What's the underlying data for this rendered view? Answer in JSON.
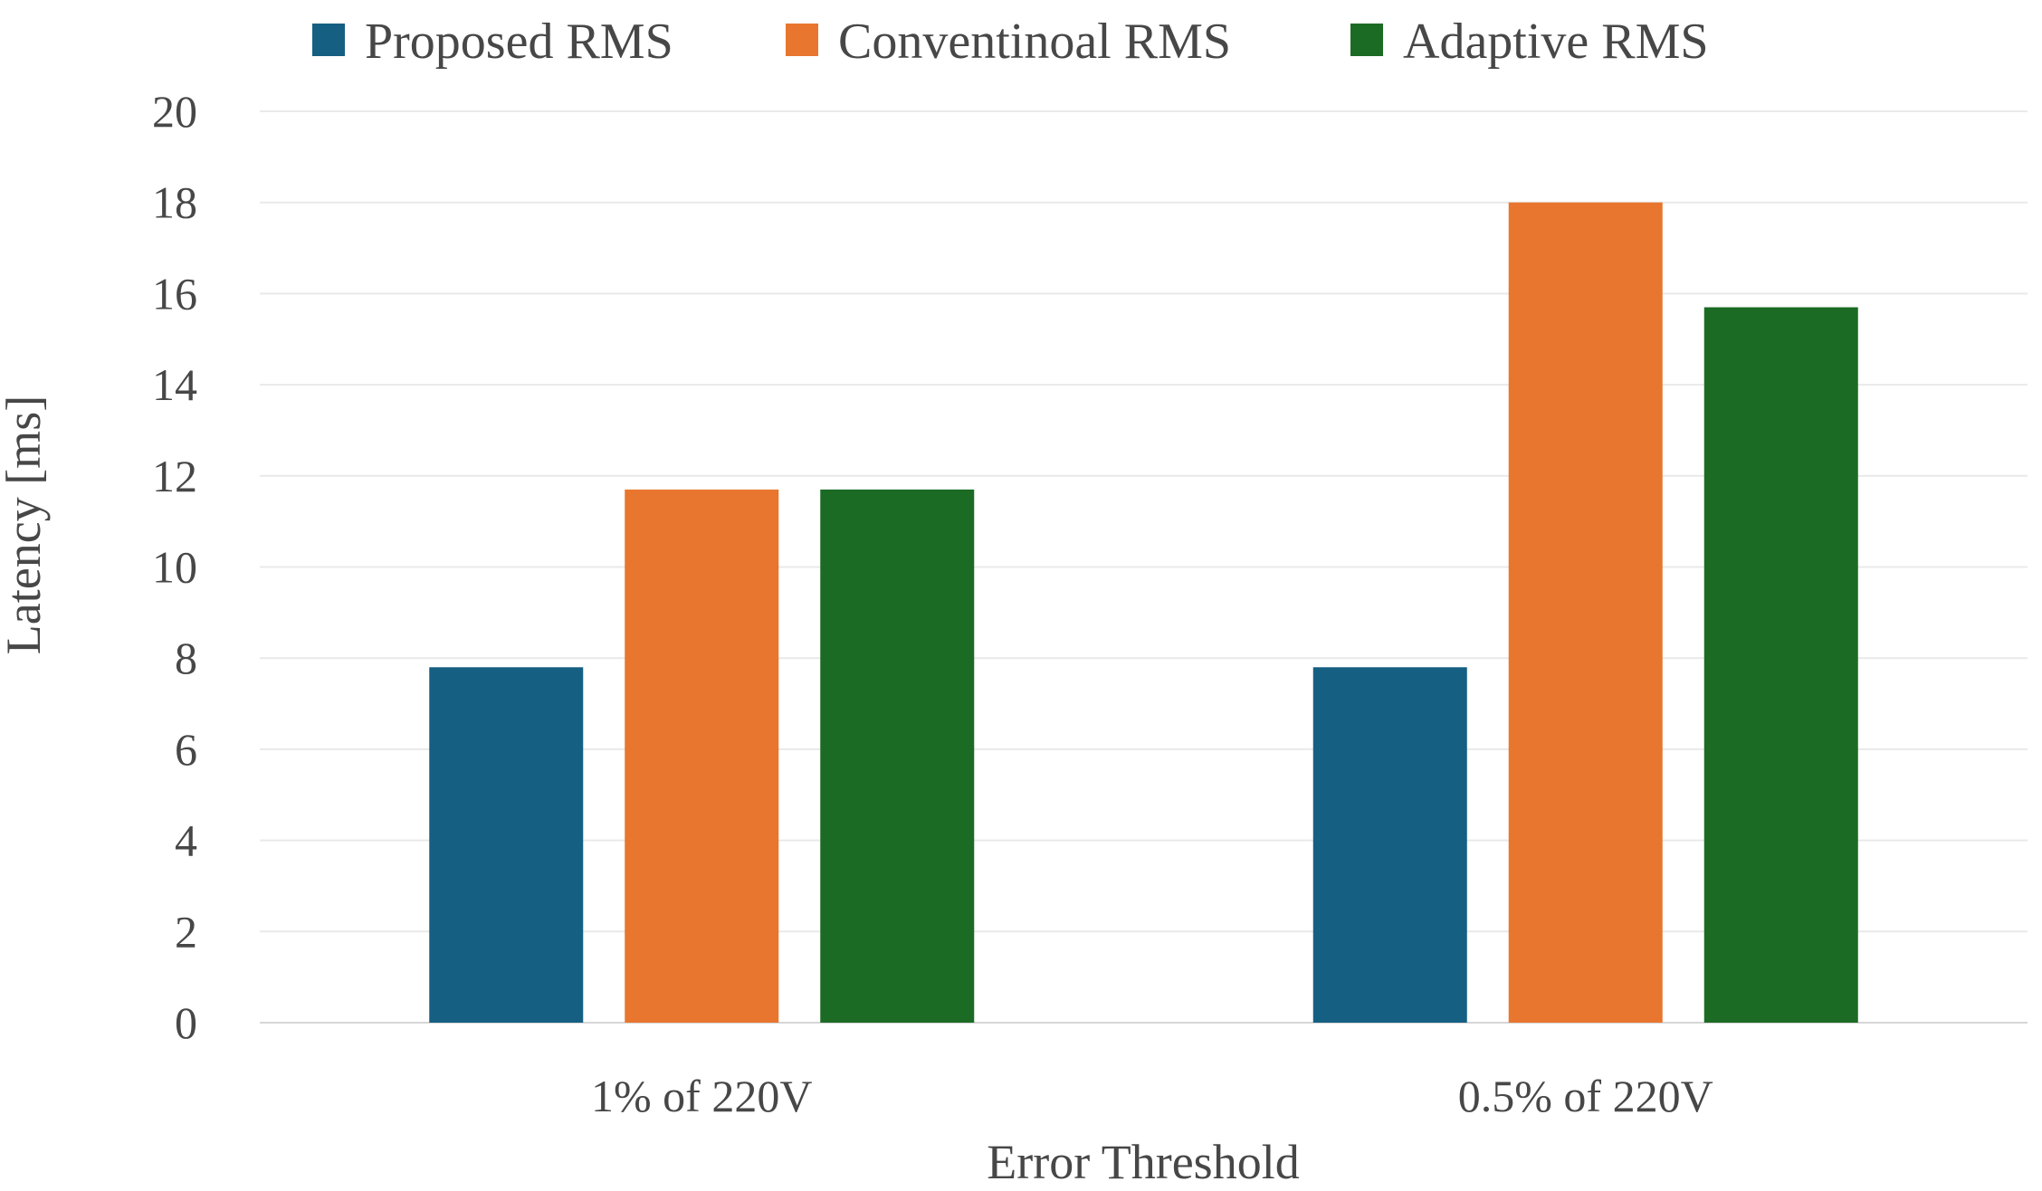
{
  "chart_data": {
    "type": "bar",
    "title": "",
    "categories": [
      "1% of 220V",
      "0.5% of 220V"
    ],
    "series": [
      {
        "name": "Proposed RMS",
        "color": "#155F83",
        "values": [
          7.8,
          7.8
        ]
      },
      {
        "name": "Conventinoal RMS",
        "color": "#E8762F",
        "values": [
          11.7,
          18.0
        ]
      },
      {
        "name": "Adaptive RMS",
        "color": "#1C6B24",
        "values": [
          11.7,
          15.7
        ]
      }
    ],
    "xlabel": "Error Threshold",
    "ylabel": "Latency [ms]",
    "ylim": [
      0,
      20
    ],
    "ytick_step": 2,
    "yticks": [
      0,
      2,
      4,
      6,
      8,
      10,
      12,
      14,
      16,
      18,
      20
    ],
    "grid": true,
    "legend_position": "top",
    "colors": {
      "text": "#474747",
      "gridline": "#E9E9E9",
      "baseline": "#D6D6D6",
      "background": "#FFFFFF"
    }
  }
}
